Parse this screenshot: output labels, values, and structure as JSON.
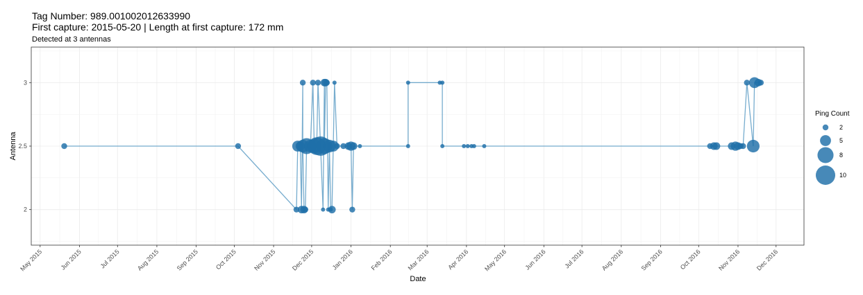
{
  "chart_data": {
    "type": "scatter",
    "title": "Tag Number: 989.001002012633990",
    "title_line2": "First capture: 2015-05-20 | Length at first capture: 172 mm",
    "subtitle": "Detected at 3 antennas",
    "xlabel": "Date",
    "ylabel": "Antenna",
    "x_ticks": [
      "May 2015",
      "Jun 2015",
      "Jul 2015",
      "Aug 2015",
      "Sep 2015",
      "Oct 2015",
      "Nov 2015",
      "Dec 2015",
      "Jan 2016",
      "Feb 2016",
      "Mar 2016",
      "Apr 2016",
      "May 2016",
      "Jun 2016",
      "Jul 2016",
      "Aug 2016",
      "Sep 2016",
      "Oct 2016",
      "Nov 2016",
      "Dec 2016"
    ],
    "x_tick_dates": [
      "2015-05-01",
      "2015-06-01",
      "2015-07-01",
      "2015-08-01",
      "2015-09-01",
      "2015-10-01",
      "2015-11-01",
      "2015-12-01",
      "2016-01-01",
      "2016-02-01",
      "2016-03-01",
      "2016-04-01",
      "2016-05-01",
      "2016-06-01",
      "2016-07-01",
      "2016-08-01",
      "2016-09-01",
      "2016-10-01",
      "2016-11-01",
      "2016-12-01"
    ],
    "xlim": [
      "2015-04-24",
      "2016-12-23"
    ],
    "y_ticks": [
      "2",
      "2.5",
      "3"
    ],
    "ylim": [
      1.72,
      3.28
    ],
    "grid": true,
    "legend": {
      "title": "Ping Count",
      "position": "right",
      "sizes": [
        2,
        5,
        8,
        10
      ],
      "labels": [
        "2",
        "5",
        "8",
        "10"
      ]
    },
    "colors": {
      "point": "#1f6fa8",
      "line": "#5e9ec6",
      "panel_border": "#333333",
      "grid": "#ebebeb"
    },
    "points": [
      {
        "date": "2015-05-20",
        "y": 2.5,
        "count": 2
      },
      {
        "date": "2015-10-04",
        "y": 2.5,
        "count": 2
      },
      {
        "date": "2015-11-19",
        "y": 2.0,
        "count": 2
      },
      {
        "date": "2015-11-20",
        "y": 2.5,
        "count": 5
      },
      {
        "date": "2015-11-22",
        "y": 2.5,
        "count": 4
      },
      {
        "date": "2015-11-23",
        "y": 2.0,
        "count": 3
      },
      {
        "date": "2015-11-24",
        "y": 3.0,
        "count": 2
      },
      {
        "date": "2015-11-24",
        "y": 2.5,
        "count": 6
      },
      {
        "date": "2015-11-25",
        "y": 2.0,
        "count": 3
      },
      {
        "date": "2015-11-26",
        "y": 2.0,
        "count": 2
      },
      {
        "date": "2015-11-27",
        "y": 2.5,
        "count": 8
      },
      {
        "date": "2015-11-30",
        "y": 2.5,
        "count": 6
      },
      {
        "date": "2015-12-02",
        "y": 3.0,
        "count": 2
      },
      {
        "date": "2015-12-03",
        "y": 2.5,
        "count": 7
      },
      {
        "date": "2015-12-05",
        "y": 2.5,
        "count": 9
      },
      {
        "date": "2015-12-06",
        "y": 3.0,
        "count": 2
      },
      {
        "date": "2015-12-08",
        "y": 2.5,
        "count": 10
      },
      {
        "date": "2015-12-10",
        "y": 2.0,
        "count": 1
      },
      {
        "date": "2015-12-11",
        "y": 3.0,
        "count": 3
      },
      {
        "date": "2015-12-11",
        "y": 2.5,
        "count": 8
      },
      {
        "date": "2015-12-12",
        "y": 3.0,
        "count": 3
      },
      {
        "date": "2015-12-13",
        "y": 3.0,
        "count": 2
      },
      {
        "date": "2015-12-14",
        "y": 2.0,
        "count": 1
      },
      {
        "date": "2015-12-15",
        "y": 2.5,
        "count": 6
      },
      {
        "date": "2015-12-16",
        "y": 2.0,
        "count": 1
      },
      {
        "date": "2015-12-17",
        "y": 2.0,
        "count": 3
      },
      {
        "date": "2015-12-18",
        "y": 2.5,
        "count": 5
      },
      {
        "date": "2015-12-19",
        "y": 3.0,
        "count": 1
      },
      {
        "date": "2015-12-21",
        "y": 2.5,
        "count": 2
      },
      {
        "date": "2015-12-26",
        "y": 2.5,
        "count": 2
      },
      {
        "date": "2015-12-30",
        "y": 2.5,
        "count": 3
      },
      {
        "date": "2016-01-01",
        "y": 2.5,
        "count": 4
      },
      {
        "date": "2016-01-02",
        "y": 2.0,
        "count": 2
      },
      {
        "date": "2016-01-03",
        "y": 2.5,
        "count": 3
      },
      {
        "date": "2016-01-08",
        "y": 2.5,
        "count": 1
      },
      {
        "date": "2016-02-15",
        "y": 2.5,
        "count": 1
      },
      {
        "date": "2016-02-15",
        "y": 3.0,
        "count": 1
      },
      {
        "date": "2016-03-11",
        "y": 3.0,
        "count": 1
      },
      {
        "date": "2016-03-13",
        "y": 3.0,
        "count": 1
      },
      {
        "date": "2016-03-13",
        "y": 2.5,
        "count": 1
      },
      {
        "date": "2016-03-30",
        "y": 2.5,
        "count": 1
      },
      {
        "date": "2016-04-02",
        "y": 2.5,
        "count": 1
      },
      {
        "date": "2016-04-05",
        "y": 2.5,
        "count": 1
      },
      {
        "date": "2016-04-07",
        "y": 2.5,
        "count": 1
      },
      {
        "date": "2016-04-15",
        "y": 2.5,
        "count": 1
      },
      {
        "date": "2016-10-10",
        "y": 2.5,
        "count": 2
      },
      {
        "date": "2016-10-13",
        "y": 2.5,
        "count": 3
      },
      {
        "date": "2016-10-15",
        "y": 2.5,
        "count": 3
      },
      {
        "date": "2016-10-27",
        "y": 2.5,
        "count": 3
      },
      {
        "date": "2016-10-30",
        "y": 2.5,
        "count": 4
      },
      {
        "date": "2016-11-01",
        "y": 2.5,
        "count": 3
      },
      {
        "date": "2016-11-03",
        "y": 2.5,
        "count": 2
      },
      {
        "date": "2016-11-05",
        "y": 2.5,
        "count": 2
      },
      {
        "date": "2016-11-08",
        "y": 3.0,
        "count": 2
      },
      {
        "date": "2016-11-13",
        "y": 2.5,
        "count": 6
      },
      {
        "date": "2016-11-14",
        "y": 3.0,
        "count": 5
      },
      {
        "date": "2016-11-17",
        "y": 3.0,
        "count": 3
      },
      {
        "date": "2016-11-19",
        "y": 3.0,
        "count": 2
      }
    ]
  }
}
